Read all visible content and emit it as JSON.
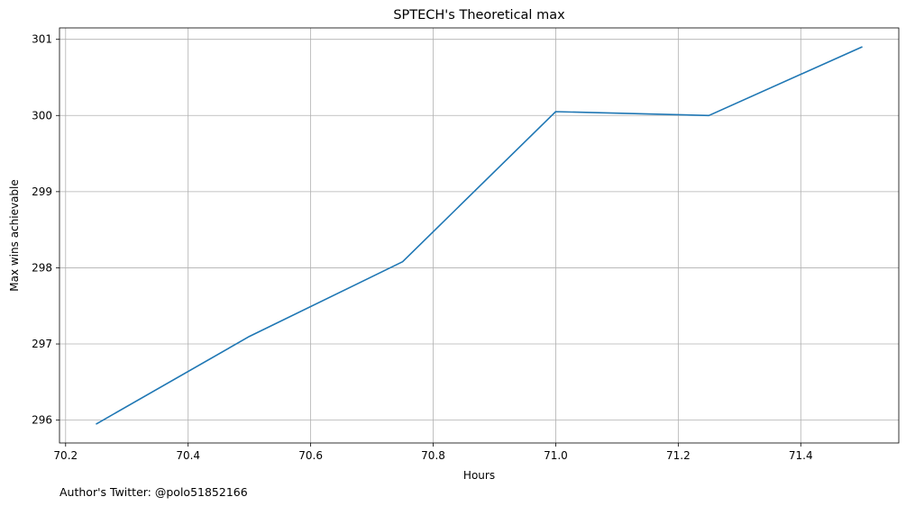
{
  "chart_data": {
    "type": "line",
    "title": "SPTECH's Theoretical max",
    "xlabel": "Hours",
    "ylabel": "Max wins achievable",
    "x": [
      70.25,
      70.5,
      70.75,
      71.0,
      71.25,
      71.5
    ],
    "series": [
      {
        "values": [
          295.95,
          297.1,
          298.08,
          300.05,
          300.0,
          300.9
        ]
      }
    ],
    "xlim": [
      70.19,
      71.56
    ],
    "ylim": [
      295.7,
      301.15
    ],
    "xticks": [
      70.2,
      70.4,
      70.6,
      70.8,
      71.0,
      71.2,
      71.4
    ],
    "xtick_labels": [
      "70.2",
      "70.4",
      "70.6",
      "70.8",
      "71.0",
      "71.2",
      "71.4"
    ],
    "yticks": [
      296,
      297,
      298,
      299,
      300,
      301
    ],
    "ytick_labels": [
      "296",
      "297",
      "298",
      "299",
      "300",
      "301"
    ],
    "grid": true,
    "line_color": "#1f77b4"
  },
  "footer": {
    "credit": "Author's Twitter: @polo51852166"
  }
}
